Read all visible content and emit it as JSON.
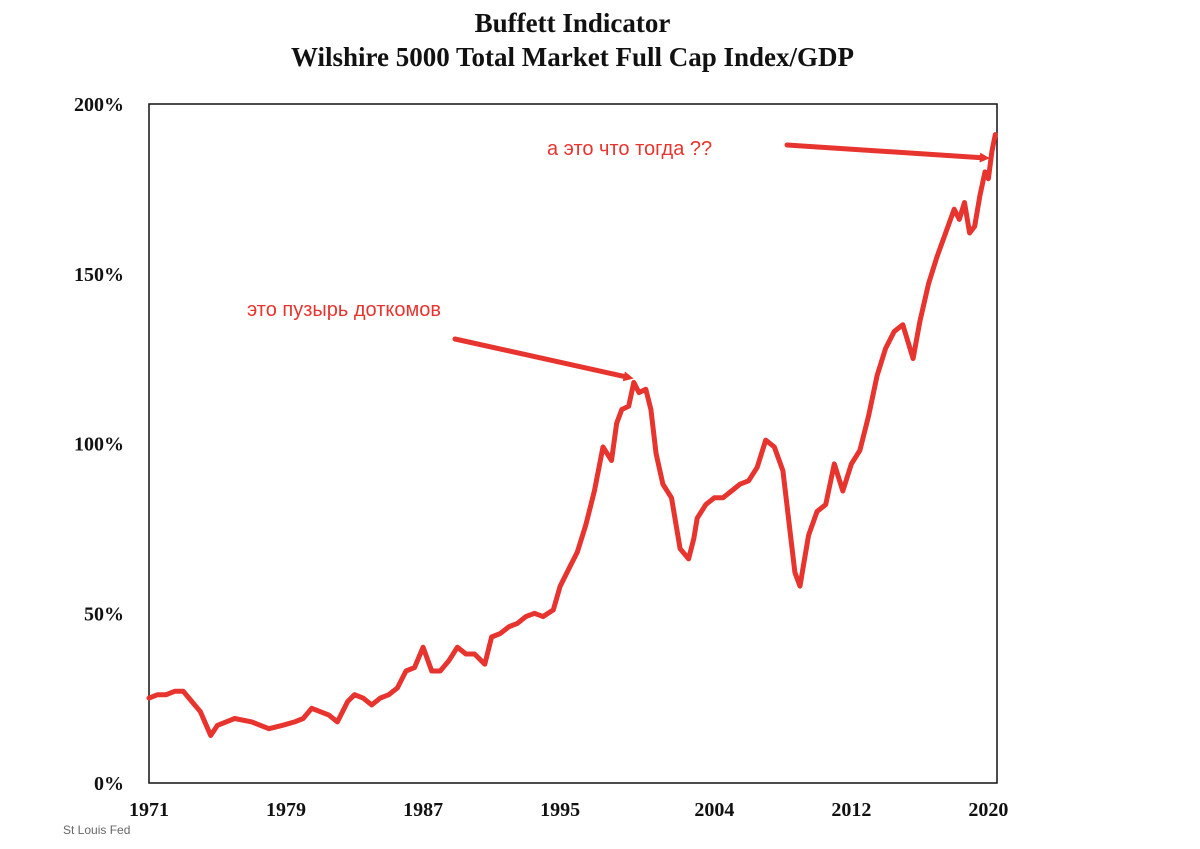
{
  "chart_data": {
    "type": "line",
    "title": "Buffett Indicator",
    "subtitle": "Wilshire 5000 Total Market Full Cap Index/GDP",
    "xlabel": "",
    "ylabel": "",
    "xlim": [
      1971,
      2020.5
    ],
    "ylim": [
      0,
      200
    ],
    "x_ticks": [
      1971,
      1979,
      1987,
      1995,
      2004,
      2012,
      2020
    ],
    "x_tick_labels": [
      "1971",
      "1979",
      "1987",
      "1995",
      "2004",
      "2012",
      "2020"
    ],
    "y_ticks": [
      0,
      50,
      100,
      150,
      200
    ],
    "y_tick_labels": [
      "0%",
      "50%",
      "100%",
      "150%",
      "200%"
    ],
    "grid": false,
    "series": [
      {
        "name": "Wilshire 5000 / GDP",
        "color": "#e8342f",
        "x": [
          1971,
          1971.5,
          1972,
          1972.5,
          1973,
          1973.5,
          1974,
          1974.6,
          1975,
          1975.5,
          1976,
          1977,
          1978,
          1978.8,
          1979.5,
          1980,
          1980.5,
          1981,
          1981.5,
          1982,
          1982.6,
          1983,
          1983.5,
          1984,
          1984.5,
          1985,
          1985.5,
          1986,
          1986.5,
          1987,
          1987.5,
          1987.8,
          1988,
          1988.5,
          1989,
          1989.5,
          1990,
          1990.6,
          1991,
          1991.5,
          1992,
          1992.5,
          1993,
          1993.5,
          1994,
          1994.6,
          1995,
          1995.5,
          1996,
          1996.5,
          1997,
          1997.5,
          1998,
          1998.3,
          1998.6,
          1999,
          1999.3,
          1999.6,
          2000,
          2000.3,
          2000.6,
          2001,
          2001.5,
          2002,
          2002.5,
          2002.8,
          2003,
          2003.5,
          2004,
          2004.5,
          2005,
          2005.5,
          2006,
          2006.5,
          2007,
          2007.5,
          2008,
          2008.4,
          2008.7,
          2009,
          2009.2,
          2009.5,
          2010,
          2010.5,
          2011,
          2011.5,
          2012,
          2012.5,
          2013,
          2013.5,
          2014,
          2014.5,
          2015,
          2015.6,
          2016,
          2016.5,
          2017,
          2017.5,
          2018,
          2018.3,
          2018.6,
          2018.9,
          2019.2,
          2019.5,
          2019.8,
          2020,
          2020.2,
          2020.4
        ],
        "values": [
          25,
          26,
          26,
          27,
          27,
          24,
          21,
          14,
          17,
          18,
          19,
          18,
          16,
          17,
          18,
          19,
          22,
          21,
          20,
          18,
          24,
          26,
          25,
          23,
          25,
          26,
          28,
          33,
          34,
          40,
          33,
          33,
          33,
          36,
          40,
          38,
          38,
          35,
          43,
          44,
          46,
          47,
          49,
          50,
          49,
          51,
          58,
          63,
          68,
          76,
          86,
          99,
          95,
          106,
          110,
          111,
          118,
          115,
          116,
          110,
          97,
          88,
          84,
          69,
          66,
          72,
          78,
          82,
          84,
          84,
          86,
          88,
          89,
          93,
          101,
          99,
          92,
          75,
          62,
          58,
          64,
          73,
          80,
          82,
          94,
          86,
          94,
          98,
          108,
          120,
          128,
          133,
          135,
          125,
          136,
          147,
          155,
          162,
          169,
          166,
          171,
          162,
          164,
          173,
          180,
          178,
          186,
          191
        ]
      }
    ],
    "annotations": [
      {
        "text": "это пузырь доткомов",
        "points_to": {
          "x": 1999.4,
          "y": 119
        }
      },
      {
        "text": "а это что тогда  ??",
        "points_to": {
          "x": 2020.2,
          "y": 184
        }
      }
    ]
  },
  "source": "St Louis Fed"
}
